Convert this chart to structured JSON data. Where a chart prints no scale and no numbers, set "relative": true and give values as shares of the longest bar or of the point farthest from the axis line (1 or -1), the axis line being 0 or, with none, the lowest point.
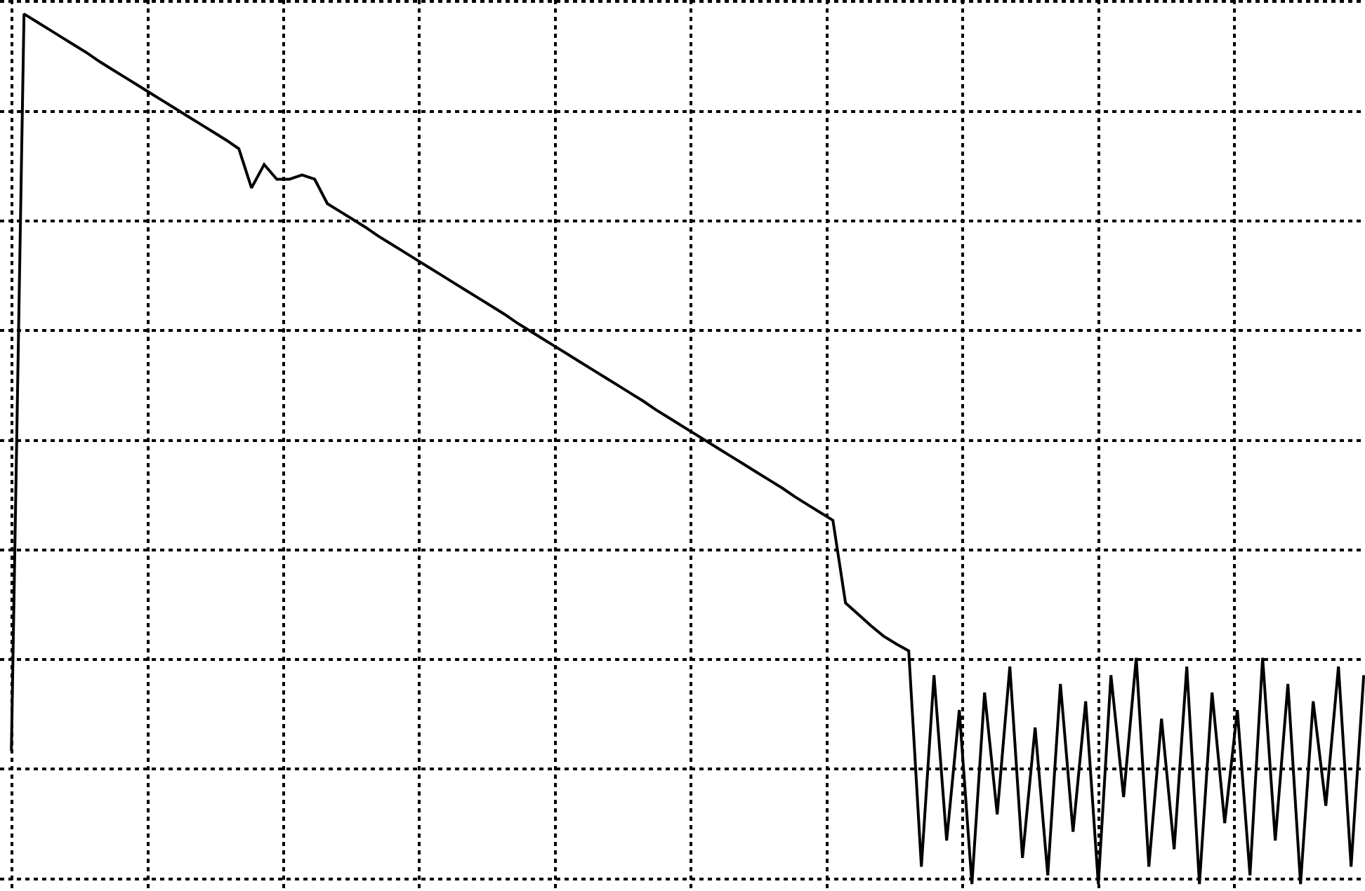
{
  "chart_data": {
    "type": "line",
    "relative": true,
    "grid": true,
    "marker": "none",
    "line_style": "solid",
    "categories": [
      null,
      null,
      null,
      null,
      null,
      null,
      null,
      null,
      null,
      null,
      null,
      null,
      null,
      null,
      null,
      null,
      null,
      null,
      null,
      null,
      null,
      null,
      null,
      null,
      null,
      null,
      null,
      null,
      null,
      null,
      null,
      null,
      null,
      null,
      null,
      null,
      null,
      null,
      null,
      null,
      null,
      null,
      null,
      null,
      null,
      null,
      null,
      null,
      null,
      null,
      null,
      null,
      null,
      null,
      null,
      null,
      null,
      null,
      null,
      null,
      null,
      null,
      null,
      null,
      null,
      null,
      null,
      null,
      null,
      null,
      null,
      null,
      null,
      null,
      null,
      null,
      null,
      null,
      null,
      null,
      null,
      null,
      null,
      null,
      null,
      null,
      null,
      null,
      null,
      null,
      null,
      null,
      null,
      null,
      null,
      null,
      null,
      null,
      null,
      null,
      null,
      null,
      null,
      null,
      null,
      null,
      null,
      null
    ],
    "series": [
      {
        "color": "#000000",
        "values": [
          0.153,
          1.0,
          0.991,
          0.982,
          0.973,
          0.964,
          0.955,
          0.945,
          0.936,
          0.927,
          0.918,
          0.909,
          0.9,
          0.891,
          0.882,
          0.873,
          0.864,
          0.855,
          0.845,
          0.8,
          0.827,
          0.81,
          0.81,
          0.815,
          0.81,
          0.782,
          0.773,
          0.764,
          0.755,
          0.745,
          0.736,
          0.727,
          0.718,
          0.709,
          0.7,
          0.691,
          0.682,
          0.673,
          0.664,
          0.655,
          0.645,
          0.636,
          0.627,
          0.618,
          0.609,
          0.6,
          0.591,
          0.582,
          0.573,
          0.564,
          0.555,
          0.545,
          0.536,
          0.527,
          0.518,
          0.509,
          0.5,
          0.491,
          0.482,
          0.473,
          0.464,
          0.455,
          0.445,
          0.436,
          0.427,
          0.418,
          0.323,
          0.31,
          0.297,
          0.285,
          0.276,
          0.268,
          0.02,
          0.24,
          0.05,
          0.2,
          0.0,
          0.22,
          0.08,
          0.25,
          0.03,
          0.18,
          0.01,
          0.23,
          0.06,
          0.21,
          0.0,
          0.24,
          0.1,
          0.26,
          0.02,
          0.19,
          0.04,
          0.25,
          0.0,
          0.22,
          0.07,
          0.2,
          0.01,
          0.26,
          0.05,
          0.23,
          0.0,
          0.21,
          0.09,
          0.25,
          0.02,
          0.24
        ]
      }
    ]
  }
}
